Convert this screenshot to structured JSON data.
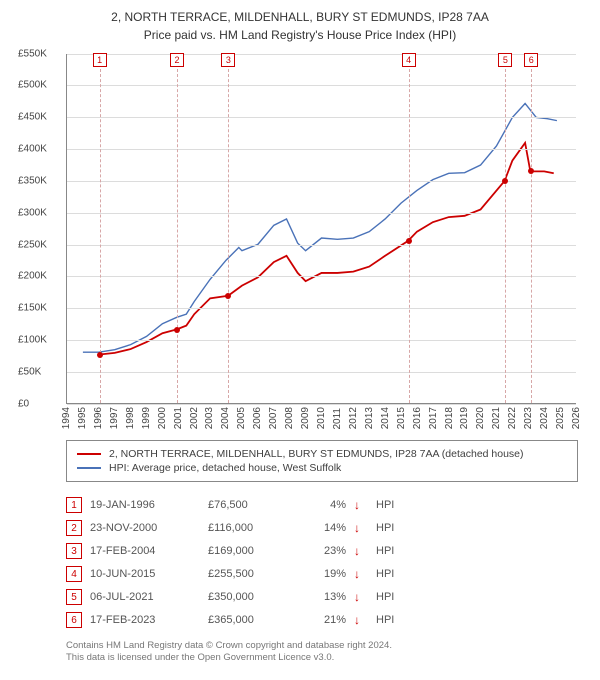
{
  "title": "2, NORTH TERRACE, MILDENHALL, BURY ST EDMUNDS, IP28 7AA",
  "subtitle": "Price paid vs. HM Land Registry's House Price Index (HPI)",
  "chart": {
    "x_min": 1994,
    "x_max": 2026,
    "y_min": 0,
    "y_max": 550000,
    "y_ticks": [
      0,
      50000,
      100000,
      150000,
      200000,
      250000,
      300000,
      350000,
      400000,
      450000,
      500000,
      550000
    ],
    "y_tick_labels": [
      "£0",
      "£50K",
      "£100K",
      "£150K",
      "£200K",
      "£250K",
      "£300K",
      "£350K",
      "£400K",
      "£450K",
      "£500K",
      "£550K"
    ],
    "x_ticks": [
      1994,
      1995,
      1996,
      1997,
      1998,
      1999,
      2000,
      2001,
      2002,
      2003,
      2004,
      2005,
      2006,
      2007,
      2008,
      2009,
      2010,
      2011,
      2012,
      2013,
      2014,
      2015,
      2016,
      2017,
      2018,
      2019,
      2020,
      2021,
      2022,
      2023,
      2024,
      2025,
      2026
    ],
    "grid_color": "#dcdcdc",
    "axis_color": "#888888",
    "sale_dash_color": "#d7a7a7",
    "line_red": "#cc0000",
    "line_blue": "#4a72b8",
    "series_hpi": [
      [
        1995.0,
        80000
      ],
      [
        1996.0,
        80000
      ],
      [
        1997.0,
        84000
      ],
      [
        1998.0,
        92000
      ],
      [
        1999.0,
        105000
      ],
      [
        2000.0,
        125000
      ],
      [
        2000.9,
        135000
      ],
      [
        2001.5,
        140000
      ],
      [
        2002.0,
        160000
      ],
      [
        2003.0,
        195000
      ],
      [
        2004.0,
        225000
      ],
      [
        2004.8,
        245000
      ],
      [
        2005.0,
        240000
      ],
      [
        2006.0,
        250000
      ],
      [
        2007.0,
        280000
      ],
      [
        2007.8,
        290000
      ],
      [
        2008.5,
        252000
      ],
      [
        2009.0,
        240000
      ],
      [
        2010.0,
        260000
      ],
      [
        2011.0,
        258000
      ],
      [
        2012.0,
        260000
      ],
      [
        2013.0,
        270000
      ],
      [
        2014.0,
        290000
      ],
      [
        2015.0,
        315000
      ],
      [
        2016.0,
        335000
      ],
      [
        2017.0,
        352000
      ],
      [
        2018.0,
        362000
      ],
      [
        2019.0,
        363000
      ],
      [
        2020.0,
        375000
      ],
      [
        2021.0,
        405000
      ],
      [
        2022.0,
        450000
      ],
      [
        2022.8,
        472000
      ],
      [
        2023.5,
        450000
      ],
      [
        2024.2,
        448000
      ],
      [
        2024.8,
        445000
      ]
    ],
    "series_property": [
      [
        1996.05,
        76500
      ],
      [
        1997.0,
        79000
      ],
      [
        1998.0,
        85000
      ],
      [
        1999.0,
        96000
      ],
      [
        2000.0,
        110000
      ],
      [
        2000.9,
        116000
      ],
      [
        2001.5,
        122000
      ],
      [
        2002.0,
        140000
      ],
      [
        2003.0,
        165000
      ],
      [
        2004.13,
        169000
      ],
      [
        2005.0,
        185000
      ],
      [
        2006.0,
        198000
      ],
      [
        2007.0,
        222000
      ],
      [
        2007.8,
        232000
      ],
      [
        2008.5,
        205000
      ],
      [
        2009.0,
        192000
      ],
      [
        2010.0,
        205000
      ],
      [
        2011.0,
        205000
      ],
      [
        2012.0,
        207000
      ],
      [
        2013.0,
        215000
      ],
      [
        2014.0,
        232000
      ],
      [
        2015.44,
        255500
      ],
      [
        2016.0,
        270000
      ],
      [
        2017.0,
        285000
      ],
      [
        2018.0,
        293000
      ],
      [
        2019.0,
        295000
      ],
      [
        2020.0,
        305000
      ],
      [
        2021.51,
        350000
      ],
      [
        2022.0,
        382000
      ],
      [
        2022.8,
        410000
      ],
      [
        2023.13,
        365000
      ],
      [
        2024.0,
        365000
      ],
      [
        2024.6,
        362000
      ]
    ],
    "sale_markers": [
      {
        "n": "1",
        "x": 1996.05,
        "y_marker": 540000,
        "y_dot": 76500
      },
      {
        "n": "2",
        "x": 2000.9,
        "y_marker": 540000,
        "y_dot": 116000
      },
      {
        "n": "3",
        "x": 2004.13,
        "y_marker": 540000,
        "y_dot": 169000
      },
      {
        "n": "4",
        "x": 2015.44,
        "y_marker": 540000,
        "y_dot": 255500
      },
      {
        "n": "5",
        "x": 2021.51,
        "y_marker": 540000,
        "y_dot": 350000
      },
      {
        "n": "6",
        "x": 2023.13,
        "y_marker": 540000,
        "y_dot": 365000
      }
    ]
  },
  "legend": {
    "series1": "2, NORTH TERRACE, MILDENHALL, BURY ST EDMUNDS, IP28 7AA (detached house)",
    "series2": "HPI: Average price, detached house, West Suffolk"
  },
  "sales": [
    {
      "n": "1",
      "date": "19-JAN-1996",
      "price": "£76,500",
      "pct": "4%",
      "dir": "↓",
      "arrow_color": "#cc0000",
      "tag": "HPI"
    },
    {
      "n": "2",
      "date": "23-NOV-2000",
      "price": "£116,000",
      "pct": "14%",
      "dir": "↓",
      "arrow_color": "#cc0000",
      "tag": "HPI"
    },
    {
      "n": "3",
      "date": "17-FEB-2004",
      "price": "£169,000",
      "pct": "23%",
      "dir": "↓",
      "arrow_color": "#cc0000",
      "tag": "HPI"
    },
    {
      "n": "4",
      "date": "10-JUN-2015",
      "price": "£255,500",
      "pct": "19%",
      "dir": "↓",
      "arrow_color": "#cc0000",
      "tag": "HPI"
    },
    {
      "n": "5",
      "date": "06-JUL-2021",
      "price": "£350,000",
      "pct": "13%",
      "dir": "↓",
      "arrow_color": "#cc0000",
      "tag": "HPI"
    },
    {
      "n": "6",
      "date": "17-FEB-2023",
      "price": "£365,000",
      "pct": "21%",
      "dir": "↓",
      "arrow_color": "#cc0000",
      "tag": "HPI"
    }
  ],
  "data_note_l1": "Contains HM Land Registry data © Crown copyright and database right 2024.",
  "data_note_l2": "This data is licensed under the Open Government Licence v3.0."
}
